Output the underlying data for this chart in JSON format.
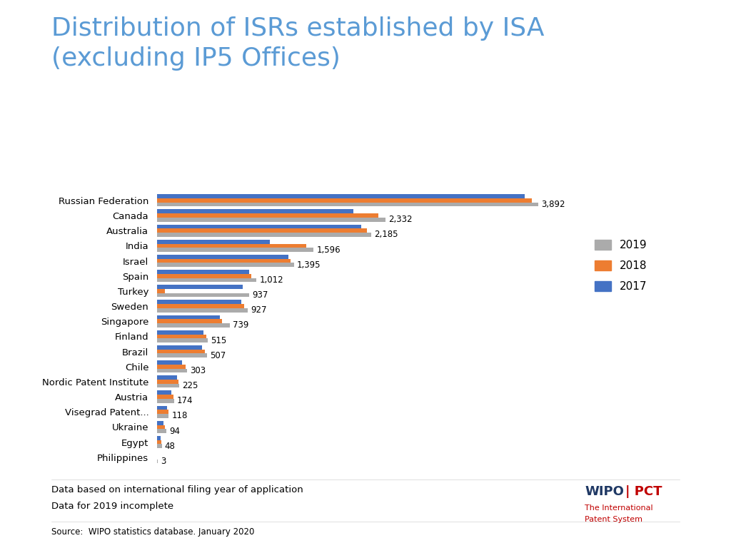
{
  "title": "Distribution of ISRs established by ISA\n(excluding IP5 Offices)",
  "title_color": "#5B9BD5",
  "title_fontsize": 26,
  "footnote1": "Data based on international filing year of application",
  "footnote2": "Data for 2019 incomplete",
  "source": "Source:  WIPO statistics database. January 2020",
  "background_color": "#FFFFFF",
  "categories": [
    "Russian Federation",
    "Canada",
    "Australia",
    "India",
    "Israel",
    "Spain",
    "Turkey",
    "Sweden",
    "Singapore",
    "Finland",
    "Brazil",
    "Chile",
    "Nordic Patent Institute",
    "Austria",
    "Visegrad Patent...",
    "Ukraine",
    "Egypt",
    "Philippines"
  ],
  "values_2019": [
    3892,
    2332,
    2185,
    1596,
    1395,
    1012,
    937,
    927,
    739,
    515,
    507,
    303,
    225,
    174,
    118,
    94,
    48,
    3
  ],
  "values_2018": [
    3820,
    2260,
    2140,
    1520,
    1360,
    960,
    80,
    890,
    660,
    498,
    490,
    290,
    218,
    163,
    113,
    78,
    43,
    2
  ],
  "values_2017": [
    3750,
    2000,
    2080,
    1150,
    1340,
    940,
    870,
    860,
    640,
    470,
    460,
    255,
    205,
    148,
    98,
    68,
    38,
    1
  ],
  "color_2019": "#ABABAB",
  "color_2018": "#ED7D31",
  "color_2017": "#4472C4",
  "bar_height": 0.27,
  "wipo_color_wipo": "#1F3864",
  "wipo_color_pct": "#C00000"
}
